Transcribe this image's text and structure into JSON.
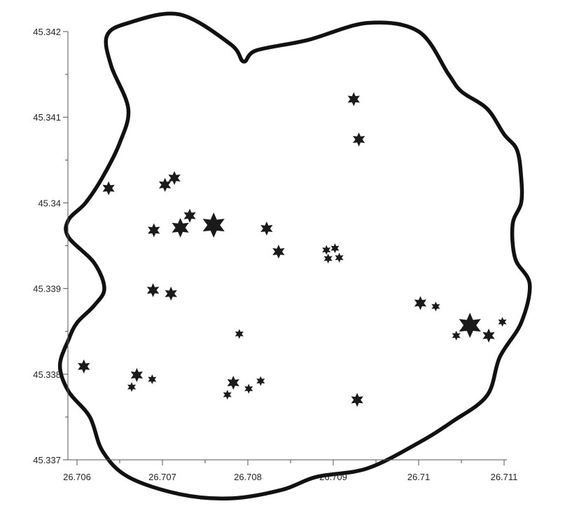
{
  "chart_data": {
    "type": "scatter",
    "title": "",
    "xlabel": "",
    "ylabel": "",
    "xlim": [
      26.706,
      26.711
    ],
    "ylim": [
      45.337,
      45.342
    ],
    "grid": false,
    "colors": {
      "marker": "#1a1a1a",
      "boundary": "#111111",
      "axis": "#555555"
    },
    "marker_shape": "six-pointed-star",
    "x_ticks": [
      {
        "value": 26.706,
        "label": "26.706"
      },
      {
        "value": 26.707,
        "label": "26.707"
      },
      {
        "value": 26.708,
        "label": "26.708"
      },
      {
        "value": 26.709,
        "label": "26.709"
      },
      {
        "value": 26.71,
        "label": "26.71"
      },
      {
        "value": 26.711,
        "label": "26.711"
      }
    ],
    "x_minor_ticks": [
      26.7065,
      26.7075,
      26.7085,
      26.7095,
      26.7105
    ],
    "y_ticks": [
      {
        "value": 45.337,
        "label": "45.337"
      },
      {
        "value": 45.338,
        "label": "45.338"
      },
      {
        "value": 45.339,
        "label": "45.339"
      },
      {
        "value": 45.34,
        "label": "45.34"
      },
      {
        "value": 45.341,
        "label": "45.341"
      },
      {
        "value": 45.342,
        "label": "45.342"
      }
    ],
    "y_minor_ticks": [
      45.3375,
      45.3385,
      45.3395,
      45.3405,
      45.3415
    ],
    "series": [
      {
        "points": [
          {
            "x": 26.70924,
            "y": 45.34121,
            "size": 2
          },
          {
            "x": 26.7093,
            "y": 45.34074,
            "size": 2
          },
          {
            "x": 26.70637,
            "y": 45.34017,
            "size": 2
          },
          {
            "x": 26.70703,
            "y": 45.34021,
            "size": 2
          },
          {
            "x": 26.70714,
            "y": 45.34029,
            "size": 2
          },
          {
            "x": 26.70732,
            "y": 45.33985,
            "size": 2
          },
          {
            "x": 26.7076,
            "y": 45.33974,
            "size": 4
          },
          {
            "x": 26.70721,
            "y": 45.33971,
            "size": 3
          },
          {
            "x": 26.7069,
            "y": 45.33968,
            "size": 2
          },
          {
            "x": 26.70822,
            "y": 45.3397,
            "size": 2
          },
          {
            "x": 26.70836,
            "y": 45.33943,
            "size": 2
          },
          {
            "x": 26.70892,
            "y": 45.33945,
            "size": 1
          },
          {
            "x": 26.70902,
            "y": 45.33947,
            "size": 1
          },
          {
            "x": 26.70894,
            "y": 45.33935,
            "size": 1
          },
          {
            "x": 26.70907,
            "y": 45.33936,
            "size": 1
          },
          {
            "x": 26.70689,
            "y": 45.33898,
            "size": 2
          },
          {
            "x": 26.7071,
            "y": 45.33894,
            "size": 2
          },
          {
            "x": 26.71002,
            "y": 45.33883,
            "size": 2
          },
          {
            "x": 26.7102,
            "y": 45.33879,
            "size": 1
          },
          {
            "x": 26.7106,
            "y": 45.33857,
            "size": 4
          },
          {
            "x": 26.71098,
            "y": 45.33861,
            "size": 1
          },
          {
            "x": 26.71044,
            "y": 45.33845,
            "size": 1
          },
          {
            "x": 26.71082,
            "y": 45.33845,
            "size": 2
          },
          {
            "x": 26.7079,
            "y": 45.33847,
            "size": 1
          },
          {
            "x": 26.70608,
            "y": 45.33809,
            "size": 2
          },
          {
            "x": 26.7067,
            "y": 45.33799,
            "size": 2
          },
          {
            "x": 26.70688,
            "y": 45.33794,
            "size": 1
          },
          {
            "x": 26.70664,
            "y": 45.33785,
            "size": 1
          },
          {
            "x": 26.70783,
            "y": 45.3379,
            "size": 2
          },
          {
            "x": 26.70776,
            "y": 45.33776,
            "size": 1
          },
          {
            "x": 26.70801,
            "y": 45.33783,
            "size": 1
          },
          {
            "x": 26.70815,
            "y": 45.33792,
            "size": 1
          },
          {
            "x": 26.70928,
            "y": 45.3377,
            "size": 2
          }
        ]
      }
    ],
    "boundary_polygon": [
      [
        26.7066,
        45.3421
      ],
      [
        26.7072,
        45.3422
      ],
      [
        26.7078,
        45.34185
      ],
      [
        26.70795,
        45.34165
      ],
      [
        26.7081,
        45.34178
      ],
      [
        26.7087,
        45.3419
      ],
      [
        26.7094,
        45.3421
      ],
      [
        26.71,
        45.342
      ],
      [
        26.71035,
        45.3415
      ],
      [
        26.7105,
        45.3413
      ],
      [
        26.7108,
        45.3411
      ],
      [
        26.711,
        45.3408
      ],
      [
        26.71115,
        45.34062
      ],
      [
        26.7112,
        45.3403
      ],
      [
        26.7112,
        45.34
      ],
      [
        26.7111,
        45.33975
      ],
      [
        26.71113,
        45.33935
      ],
      [
        26.7113,
        45.33905
      ],
      [
        26.7112,
        45.3386
      ],
      [
        26.71095,
        45.3382
      ],
      [
        26.7108,
        45.33775
      ],
      [
        26.7104,
        45.33745
      ],
      [
        26.71,
        45.3372
      ],
      [
        26.7094,
        45.3369
      ],
      [
        26.7088,
        45.3368
      ],
      [
        26.7084,
        45.33665
      ],
      [
        26.7078,
        45.33655
      ],
      [
        26.7072,
        45.3366
      ],
      [
        26.7066,
        45.3368
      ],
      [
        26.7063,
        45.3371
      ],
      [
        26.70615,
        45.3375
      ],
      [
        26.7059,
        45.3378
      ],
      [
        26.7058,
        45.3381
      ],
      [
        26.7059,
        45.3384
      ],
      [
        26.706,
        45.3386
      ],
      [
        26.7062,
        45.3388
      ],
      [
        26.70632,
        45.339
      ],
      [
        26.7062,
        45.3393
      ],
      [
        26.7059,
        45.3396
      ],
      [
        26.7059,
        45.3398
      ],
      [
        26.7061,
        45.34
      ],
      [
        26.7063,
        45.3403
      ],
      [
        26.7065,
        45.3407
      ],
      [
        26.7066,
        45.3411
      ],
      [
        26.7064,
        45.3416
      ],
      [
        26.70635,
        45.34195
      ]
    ]
  }
}
